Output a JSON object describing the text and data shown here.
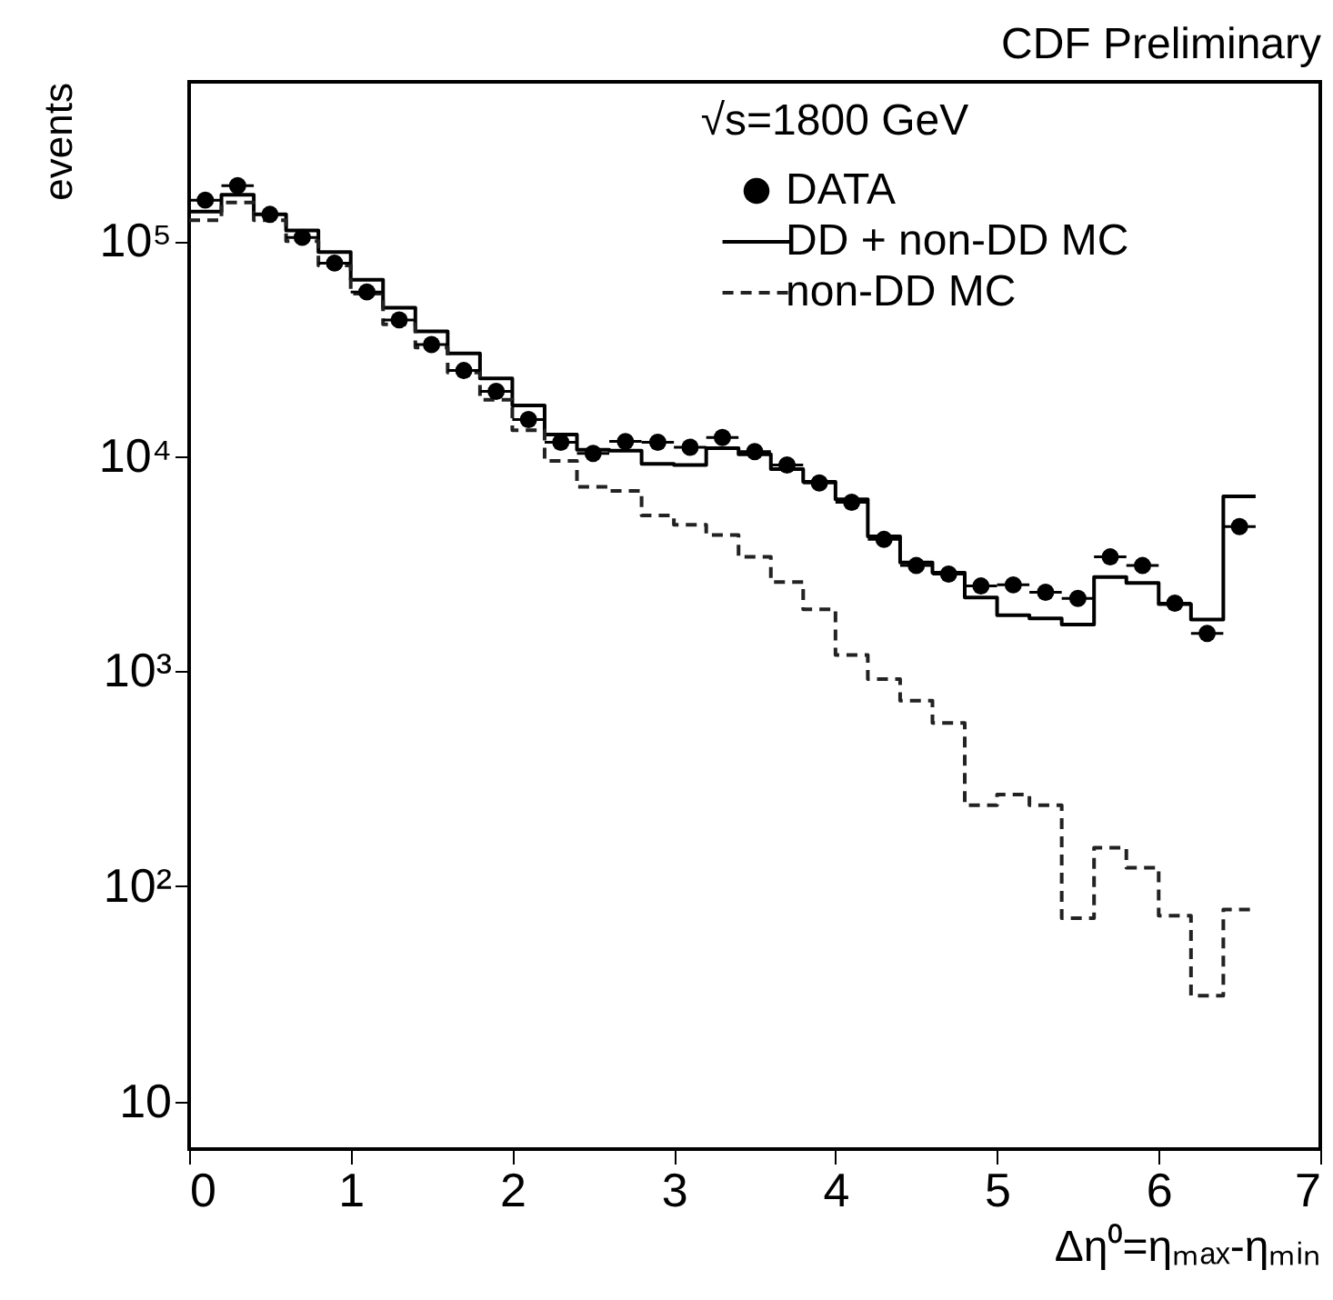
{
  "chart_data": {
    "type": "histogram",
    "title": "CDF Preliminary",
    "annotations": [
      "√s=1800 GeV"
    ],
    "xlabel": "Δη⁰=ηₘₐₓ-ηₘᵢₙ",
    "ylabel": "events",
    "log": true,
    "grid": false,
    "legend": "top right",
    "xlim": [
      0,
      7
    ],
    "xticks": [
      0,
      1,
      2,
      3,
      4,
      5,
      6,
      7
    ],
    "ylim": [
      6,
      550000
    ],
    "yticks": [
      {
        "value": 10,
        "label": "10"
      },
      {
        "value": 100,
        "label": "10²"
      },
      {
        "value": 1000,
        "label": "10³"
      },
      {
        "value": 10000,
        "label": "10⁴"
      },
      {
        "value": 100000,
        "label": "10⁵"
      }
    ],
    "bins": [
      0,
      0.2,
      0.4,
      0.6,
      0.8,
      1.0,
      1.2,
      1.4,
      1.6,
      1.8,
      2.0,
      2.2,
      2.4,
      2.6,
      2.8,
      3.0,
      3.2,
      3.4,
      3.6,
      3.8,
      4.0,
      4.2,
      4.4,
      4.6,
      4.8,
      5.0,
      5.2,
      5.4,
      5.6,
      5.8,
      6.0,
      6.2,
      6.4,
      6.6
    ],
    "series": [
      {
        "name": "DATA",
        "type": "scatter",
        "marker": "circle",
        "color": "#000000",
        "x": [
          0.1,
          0.3,
          0.5,
          0.7,
          0.9,
          1.1,
          1.3,
          1.5,
          1.7,
          1.9,
          2.1,
          2.3,
          2.5,
          2.7,
          2.9,
          3.1,
          3.3,
          3.5,
          3.7,
          3.9,
          4.1,
          4.3,
          4.5,
          4.7,
          4.9,
          5.1,
          5.3,
          5.5,
          5.7,
          5.9,
          6.1,
          6.3,
          6.5
        ],
        "values": [
          155000,
          181000,
          133000,
          104000,
          79000,
          58000,
          43000,
          33000,
          25000,
          20000,
          14800,
          11600,
          10300,
          11700,
          11600,
          11000,
          12200,
          10500,
          9100,
          7500,
          6100,
          4100,
          3100,
          2830,
          2490,
          2520,
          2330,
          2180,
          3400,
          3100,
          2070,
          1500,
          4700
        ],
        "xerrors": [
          0.1,
          0.1,
          0.1,
          0.1,
          0.1,
          0.1,
          0.1,
          0.1,
          0.1,
          0.1,
          0.1,
          0.1,
          0.1,
          0.1,
          0.1,
          0.1,
          0.1,
          0.1,
          0.1,
          0.1,
          0.1,
          0.1,
          0.1,
          0.1,
          0.1,
          0.1,
          0.1,
          0.1,
          0.1,
          0.1,
          0.1,
          0.1,
          0.1
        ]
      },
      {
        "name": "DD + non-DD MC",
        "type": "histogram",
        "line_style": "solid",
        "color": "#000000",
        "values": [
          137000,
          164000,
          133000,
          112000,
          89000,
          66000,
          49000,
          38000,
          30000,
          23000,
          17200,
          12600,
          10700,
          10600,
          9200,
          9100,
          10900,
          10200,
          8700,
          7600,
          6300,
          4240,
          3200,
          2870,
          2200,
          1820,
          1760,
          1650,
          2740,
          2570,
          2050,
          1740,
          6500
        ]
      },
      {
        "name": "non-DD MC",
        "type": "histogram",
        "line_style": "dashed",
        "color": "#222222",
        "values": [
          125000,
          151000,
          125000,
          100000,
          77000,
          57000,
          41000,
          32000,
          24500,
          18300,
          13200,
          9500,
          7200,
          6900,
          5300,
          4800,
          4300,
          3400,
          2600,
          1940,
          1190,
          920,
          730,
          575,
          238,
          267,
          238,
          71,
          151,
          122,
          73,
          31,
          78
        ]
      }
    ]
  }
}
